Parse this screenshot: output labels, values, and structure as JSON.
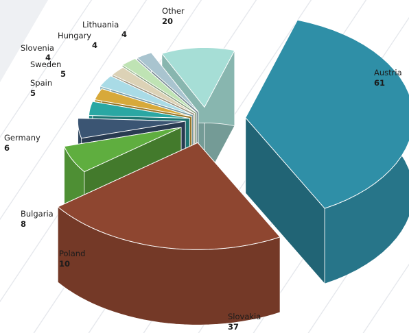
{
  "chart_data": {
    "type": "pie",
    "slices": [
      {
        "label": "Austria",
        "value": 61,
        "color": "#2f8fa7"
      },
      {
        "label": "Slovakia",
        "value": 37,
        "color": "#8e4630"
      },
      {
        "label": "Poland",
        "value": 10,
        "color": "#5fae3f"
      },
      {
        "label": "Bulgaria",
        "value": 8,
        "color": "#3b5573"
      },
      {
        "label": "Germany",
        "value": 6,
        "color": "#2aa7a3"
      },
      {
        "label": "Spain",
        "value": 5,
        "color": "#d7a93a"
      },
      {
        "label": "Sweden",
        "value": 5,
        "color": "#a9dbe6"
      },
      {
        "label": "Slovenia",
        "value": 4,
        "color": "#dcd2b6"
      },
      {
        "label": "Hungary",
        "value": 4,
        "color": "#bfe3b4"
      },
      {
        "label": "Lithuania",
        "value": 4,
        "color": "#a9c4cf"
      },
      {
        "label": "Other",
        "value": 20,
        "color": "#a6ded6"
      }
    ]
  }
}
